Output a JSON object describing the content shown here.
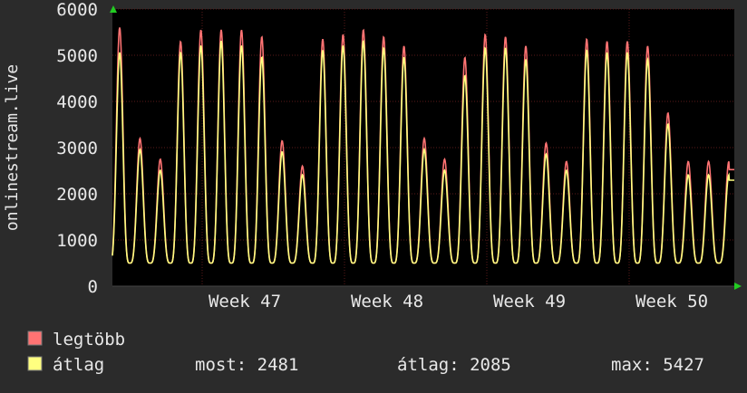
{
  "chart_data": {
    "type": "line",
    "title": "",
    "ylabel": "onlinestream.live",
    "ylim": [
      0,
      6000
    ],
    "y_ticks": [
      0,
      1000,
      2000,
      3000,
      4000,
      5000,
      6000
    ],
    "x_ticks": [
      "Week 47",
      "Week 48",
      "Week 49",
      "Week 50"
    ],
    "grid": true,
    "legend_placement": "bottom-left",
    "colors": {
      "background": "#2b2b2b",
      "plot_background": "#000000",
      "grid": "#5a1a1a",
      "max_series": "#ff7373",
      "avg_series": "#ffff80",
      "arrow": "#22cc22"
    },
    "daily_peaks": {
      "max": [
        5600,
        3200,
        2750,
        5300,
        5550,
        5550,
        5550,
        5400,
        3150,
        2600,
        5350,
        5450,
        5550,
        5400,
        5200,
        3200,
        2750,
        4950,
        5450,
        5400,
        5200,
        3100,
        2700,
        5350,
        5300,
        5300,
        5200,
        3750,
        2700
      ],
      "avg": [
        5100,
        3000,
        2550,
        5100,
        5250,
        5350,
        5250,
        5000,
        2950,
        2450,
        5150,
        5250,
        5350,
        5200,
        5000,
        3000,
        2550,
        4600,
        5200,
        5200,
        4950,
        2900,
        2550,
        5150,
        5100,
        5100,
        4950,
        3550,
        2450
      ]
    },
    "series": [
      {
        "name": "legtöbb",
        "color": "#ff7373"
      },
      {
        "name": "átlag",
        "color": "#ffff80"
      }
    ],
    "stats": [
      {
        "label": "most:",
        "value": "2481"
      },
      {
        "label": "átlag:",
        "value": "2085"
      },
      {
        "label": "max:",
        "value": "5427"
      }
    ]
  }
}
